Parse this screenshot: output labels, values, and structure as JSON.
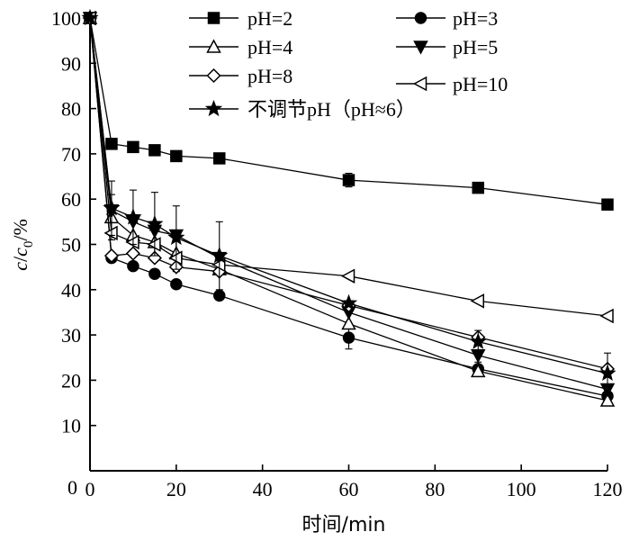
{
  "chart_data": {
    "type": "line",
    "xlabel": "时间/min",
    "ylabel": "c/c0/%",
    "ylabel_parts": {
      "c": "c",
      "slash1": "/",
      "c0": "c",
      "sub0": "0",
      "rest": "/%"
    },
    "xlim": [
      0,
      120
    ],
    "ylim": [
      0,
      100
    ],
    "xticks": [
      0,
      20,
      40,
      60,
      80,
      100,
      120
    ],
    "yticks": [
      10,
      20,
      30,
      40,
      50,
      60,
      70,
      80,
      90,
      100
    ],
    "grid": false,
    "legend_placement": "top-right",
    "x": [
      0,
      5,
      10,
      15,
      20,
      30,
      60,
      90,
      120
    ],
    "series": [
      {
        "name": "pH=2",
        "marker": "square-filled",
        "values": [
          100,
          72.2,
          71.5,
          70.8,
          69.5,
          69.0,
          64.2,
          62.5,
          58.8
        ],
        "errors": [
          0,
          0,
          0,
          0,
          0,
          0,
          1.5,
          0,
          0
        ]
      },
      {
        "name": "pH=3",
        "marker": "circle-filled",
        "values": [
          100,
          47.0,
          45.2,
          43.5,
          41.2,
          38.7,
          29.4,
          22.5,
          16.5
        ],
        "errors": [
          0,
          0,
          0,
          0,
          0,
          0,
          2.5,
          1.5,
          1.5
        ]
      },
      {
        "name": "pH=4",
        "marker": "triangle-up-open",
        "values": [
          100,
          56.0,
          52.0,
          50.5,
          48.0,
          44.5,
          32.5,
          22.0,
          15.5
        ],
        "errors": [
          0,
          5,
          4,
          4,
          4,
          0,
          0,
          0,
          0
        ]
      },
      {
        "name": "pH=5",
        "marker": "triangle-down-filled",
        "values": [
          100,
          57.5,
          55.0,
          53.0,
          52.0,
          47.0,
          35.0,
          25.5,
          18.0
        ],
        "errors": [
          0,
          0,
          0,
          0,
          0,
          0,
          0,
          0,
          0
        ]
      },
      {
        "name": "pH=8",
        "marker": "diamond-open",
        "values": [
          100,
          47.5,
          48.0,
          47.0,
          45.0,
          44.0,
          36.5,
          29.5,
          22.5
        ],
        "errors": [
          0,
          0,
          0,
          0,
          0,
          0,
          0,
          0,
          0
        ]
      },
      {
        "name": "pH=10",
        "marker": "triangle-left-open",
        "values": [
          100,
          52.5,
          50.5,
          50.0,
          47.0,
          45.5,
          43.0,
          37.5,
          34.2
        ],
        "errors": [
          0,
          0,
          0,
          0,
          0,
          0,
          0,
          0,
          0
        ]
      },
      {
        "name": "不调节pH（pH≈6）",
        "marker": "star-filled",
        "values": [
          100,
          58.0,
          56.0,
          54.5,
          51.5,
          47.5,
          37.0,
          28.5,
          21.5
        ],
        "errors": [
          0,
          6,
          6,
          7,
          7,
          7.5,
          0,
          2.5,
          4.5
        ]
      }
    ]
  }
}
